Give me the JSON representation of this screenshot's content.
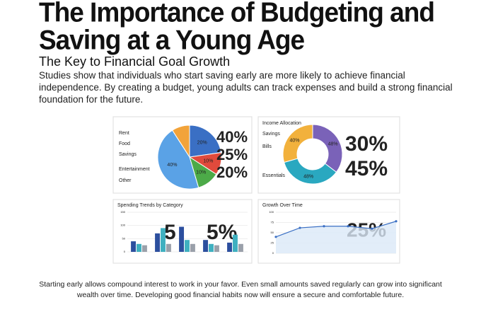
{
  "header": {
    "title": "The Importance of Budgeting and Saving at a Young Age",
    "subtitle": "The Key to Financial Goal Growth"
  },
  "intro": "Studies show that individuals who start saving early are more likely to achieve financial independence. By creating a budget, young adults can track expenses and build a strong financial foundation for the future.",
  "footer": "Starting early allows compound interest to work in your favor. Even small amounts saved regularly can grow into significant wealth over time. Developing good financial habits now will ensure a secure and comfortable future.",
  "chart_data": [
    {
      "type": "pie",
      "categories": [
        "Rent",
        "Food",
        "Savings",
        "Entertainment",
        "Other"
      ],
      "values": [
        20,
        10,
        10,
        40,
        8
      ],
      "value_labels": [
        "20%",
        "10%",
        "10%",
        "40%",
        null
      ],
      "colors": [
        "#3a6fc4",
        "#e04a3c",
        "#4caa48",
        "#5aa2e6",
        "#f2a33a"
      ],
      "annotations": [
        "40%",
        "25%",
        "20%"
      ]
    },
    {
      "type": "donut",
      "title": "Income Allocation",
      "categories": [
        "Savings",
        "Bills",
        "Essentials"
      ],
      "values": [
        48,
        48,
        40
      ],
      "value_labels": [
        "48%",
        "48%",
        "40%"
      ],
      "colors": [
        "#7a62b8",
        "#2aa8c0",
        "#f2b13c"
      ],
      "annotations": [
        "30%",
        "45%"
      ]
    },
    {
      "type": "bar",
      "title": "Spending Trends by Category",
      "categories": [
        null,
        null,
        null,
        null,
        null
      ],
      "series": [
        {
          "color": "#2c4f9e",
          "values": [
            40,
            70,
            95,
            45,
            35
          ]
        },
        {
          "color": "#3fb0c0",
          "values": [
            30,
            90,
            45,
            30,
            65
          ]
        },
        {
          "color": "#9aa0aa",
          "values": [
            25,
            30,
            30,
            25,
            30
          ]
        }
      ],
      "ylim": [
        0,
        150
      ],
      "yticks": [
        0,
        50,
        100,
        150
      ],
      "annotations": [
        "5",
        "5%"
      ]
    },
    {
      "type": "line",
      "title": "Growth Over Time",
      "categories": [
        null,
        null,
        null,
        null,
        null,
        null
      ],
      "series": [
        {
          "color": "#3a6fc4",
          "values": [
            40,
            62,
            66,
            66,
            60,
            78
          ]
        }
      ],
      "ylim": [
        0,
        100
      ],
      "yticks": [
        0,
        25,
        50,
        75,
        100
      ],
      "annotations": [
        "25%"
      ]
    }
  ]
}
